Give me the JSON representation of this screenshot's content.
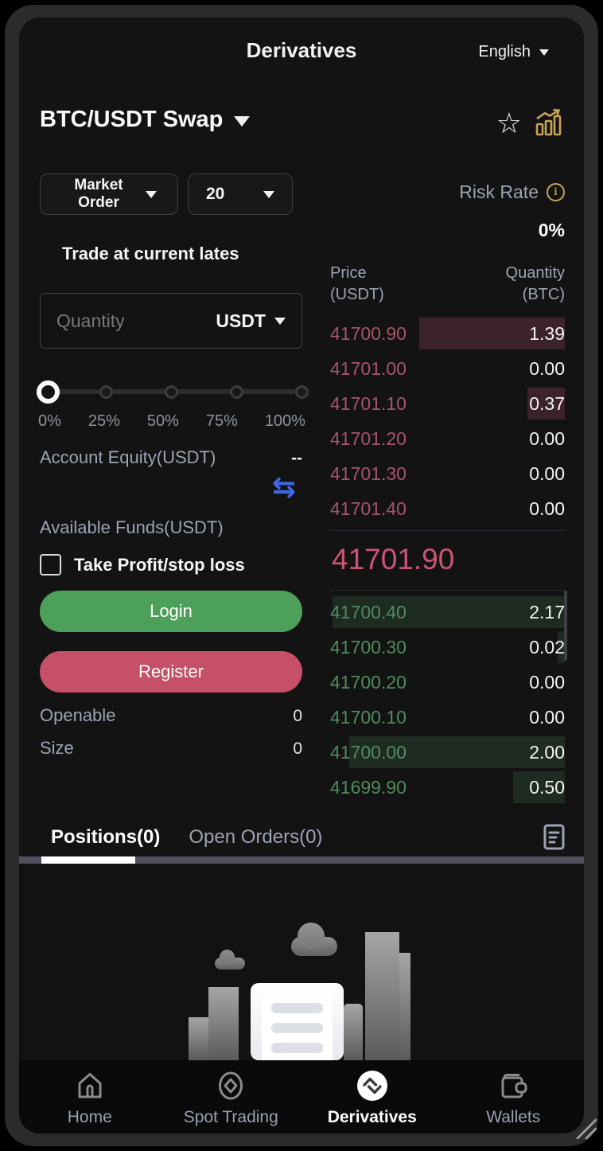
{
  "colors": {
    "ask_red": "#a75468",
    "bid_green": "#4f8c5e",
    "last_price_pink": "#cd5574",
    "login_green": "#4da05a",
    "register_rose": "#c65067",
    "gold_accent": "#c8a356",
    "swap_blue": "#3f67e6",
    "muted_label": "#9ba3b4"
  },
  "icons": {
    "favorite_star": "☆",
    "transfer_arrows": "⇆",
    "info_letter": "i"
  },
  "header": {
    "title": "Derivatives",
    "language": "English"
  },
  "market": {
    "pair": "BTC/USDT Swap"
  },
  "order_panel": {
    "order_type": "Market Order",
    "leverage": "20",
    "risk_rate_label": "Risk Rate",
    "risk_rate_value": "0%",
    "trade_note": "Trade at current lates",
    "quantity_placeholder": "Quantity",
    "quantity_unit": "USDT",
    "slider_labels": [
      "0%",
      "25%",
      "50%",
      "75%",
      "100%"
    ],
    "account_equity_label": "Account Equity(USDT)",
    "account_equity_value": "--",
    "available_funds_label": "Available Funds(USDT)",
    "tp_sl_label": "Take Profit/stop loss",
    "login_label": "Login",
    "register_label": "Register",
    "openable_label": "Openable",
    "openable_value": "0",
    "size_label": "Size",
    "size_value": "0"
  },
  "order_book": {
    "price_header": "Price",
    "price_header_unit": "(USDT)",
    "qty_header": "Quantity",
    "qty_header_unit": "(BTC)",
    "asks": [
      {
        "price": "41700.90",
        "qty": "1.39",
        "depth": 62
      },
      {
        "price": "41701.00",
        "qty": "0.00",
        "depth": 0
      },
      {
        "price": "41701.10",
        "qty": "0.37",
        "depth": 16
      },
      {
        "price": "41701.20",
        "qty": "0.00",
        "depth": 0
      },
      {
        "price": "41701.30",
        "qty": "0.00",
        "depth": 0
      },
      {
        "price": "41701.40",
        "qty": "0.00",
        "depth": 0
      }
    ],
    "last_price": "41701.90",
    "bids": [
      {
        "price": "41700.40",
        "qty": "2.17",
        "depth": 99
      },
      {
        "price": "41700.30",
        "qty": "0.02",
        "depth": 3
      },
      {
        "price": "41700.20",
        "qty": "0.00",
        "depth": 0
      },
      {
        "price": "41700.10",
        "qty": "0.00",
        "depth": 0
      },
      {
        "price": "41700.00",
        "qty": "2.00",
        "depth": 92
      },
      {
        "price": "41699.90",
        "qty": "0.50",
        "depth": 22
      }
    ]
  },
  "tabs": {
    "positions": "Positions(0)",
    "open_orders": "Open Orders(0)"
  },
  "nav": {
    "home": "Home",
    "spot": "Spot Trading",
    "derivatives": "Derivatives",
    "wallets": "Wallets"
  }
}
